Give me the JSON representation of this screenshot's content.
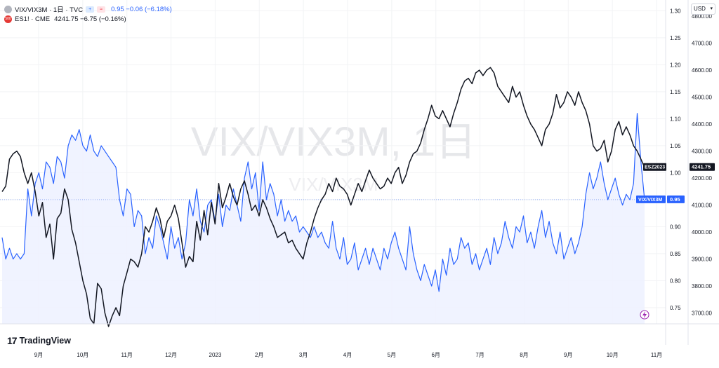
{
  "header": {
    "symbol": "VIX/VIX3M · 1日 · TVC",
    "symbol_values": "0.95  −0.06 (−6.18%)",
    "compare_symbol": "ES1! · CME",
    "compare_values": "4241.75  −6.75 (−0.16%)",
    "compare_icon_text": "500"
  },
  "watermark": "VIX/VIX3M, 1日",
  "watermark_secondary": "VIX/VIX3M",
  "currency": "USD",
  "brand": "TradingView",
  "colors": {
    "vix_ratio": "#2962ff",
    "es_futures": "#131722",
    "fill": "#e3eaff",
    "up": "#089981",
    "down": "#f23645"
  },
  "chart_data": {
    "type": "line",
    "x_axis_labels": [
      "9月",
      "10月",
      "11月",
      "12月",
      "2023",
      "2月",
      "3月",
      "4月",
      "5月",
      "6月",
      "7月",
      "8月",
      "9月",
      "10月",
      "11月"
    ],
    "series": [
      {
        "name": "VIX/VIX3M",
        "scale": "left-price-scale",
        "ylim": [
          0.72,
          1.32
        ],
        "ticks": [
          "1.30",
          "1.25",
          "1.20",
          "1.15",
          "1.10",
          "1.05",
          "1.00",
          "0.95",
          "0.90",
          "0.85",
          "0.80",
          "0.75"
        ],
        "last_label": "VIX/VIX3M",
        "last_value_label": "0.95",
        "values": [
          0.88,
          0.84,
          0.86,
          0.84,
          0.85,
          0.84,
          0.85,
          0.97,
          0.92,
          0.98,
          1.0,
          0.97,
          1.02,
          1.01,
          0.98,
          1.03,
          1.02,
          0.99,
          1.05,
          1.07,
          1.06,
          1.08,
          1.05,
          1.04,
          1.07,
          1.04,
          1.03,
          1.05,
          1.04,
          1.03,
          1.02,
          1.01,
          0.95,
          0.92,
          0.97,
          0.96,
          0.9,
          0.93,
          0.92,
          0.85,
          0.88,
          0.86,
          0.92,
          0.9,
          0.87,
          0.84,
          0.9,
          0.86,
          0.88,
          0.84,
          0.87,
          0.95,
          0.92,
          0.97,
          0.91,
          0.89,
          0.94,
          0.95,
          0.91,
          0.96,
          0.9,
          0.94,
          0.93,
          0.97,
          0.94,
          0.91,
          0.99,
          1.02,
          0.97,
          1.0,
          0.93,
          1.02,
          0.95,
          0.98,
          0.96,
          0.92,
          0.95,
          0.91,
          0.93,
          0.91,
          0.92,
          0.89,
          0.9,
          0.89,
          0.88,
          0.9,
          0.88,
          0.89,
          0.87,
          0.86,
          0.91,
          0.86,
          0.84,
          0.88,
          0.83,
          0.84,
          0.87,
          0.82,
          0.84,
          0.86,
          0.83,
          0.86,
          0.84,
          0.82,
          0.86,
          0.84,
          0.87,
          0.89,
          0.86,
          0.84,
          0.82,
          0.9,
          0.85,
          0.82,
          0.8,
          0.83,
          0.81,
          0.79,
          0.82,
          0.78,
          0.84,
          0.81,
          0.86,
          0.83,
          0.84,
          0.88,
          0.86,
          0.87,
          0.83,
          0.85,
          0.82,
          0.84,
          0.86,
          0.83,
          0.88,
          0.85,
          0.87,
          0.91,
          0.88,
          0.86,
          0.9,
          0.89,
          0.92,
          0.87,
          0.89,
          0.86,
          0.9,
          0.93,
          0.88,
          0.91,
          0.87,
          0.85,
          0.89,
          0.84,
          0.86,
          0.88,
          0.85,
          0.87,
          0.9,
          0.96,
          1.0,
          0.97,
          0.99,
          1.02,
          0.98,
          0.95,
          0.97,
          0.99,
          0.96,
          0.94,
          0.96,
          0.95,
          0.98,
          1.11,
          1.02,
          0.95
        ]
      },
      {
        "name": "ESZ2023",
        "scale": "right-price-scale",
        "ylim": [
          3660,
          4860
        ],
        "ticks": [
          "4800.00",
          "4700.00",
          "4600.00",
          "4500.00",
          "4400.00",
          "4300.00",
          "4200.00",
          "4100.00",
          "4000.00",
          "3900.00",
          "3800.00",
          "3700.00"
        ],
        "last_label": "ESZ2023",
        "last_value_label": "4241.75",
        "values": [
          4150,
          4170,
          4270,
          4290,
          4300,
          4280,
          4220,
          4180,
          4220,
          4150,
          4060,
          4110,
          3980,
          4030,
          3900,
          4050,
          4070,
          4160,
          4120,
          4010,
          3960,
          3890,
          3820,
          3770,
          3680,
          3660,
          3810,
          3790,
          3700,
          3650,
          3690,
          3720,
          3690,
          3800,
          3850,
          3900,
          3890,
          3870,
          3920,
          4020,
          4000,
          4040,
          4090,
          4050,
          3980,
          4040,
          4060,
          4100,
          4050,
          3960,
          3870,
          3910,
          3890,
          4040,
          3970,
          4080,
          3990,
          4110,
          4030,
          4180,
          4090,
          4130,
          4180,
          4130,
          4100,
          4160,
          4190,
          4140,
          4080,
          4100,
          4060,
          4120,
          4090,
          4050,
          4020,
          3980,
          3990,
          4000,
          3960,
          3970,
          3940,
          3920,
          3900,
          3960,
          4000,
          4050,
          4090,
          4120,
          4140,
          4180,
          4150,
          4200,
          4170,
          4160,
          4140,
          4100,
          4140,
          4180,
          4150,
          4190,
          4230,
          4200,
          4180,
          4160,
          4170,
          4200,
          4180,
          4220,
          4240,
          4180,
          4210,
          4260,
          4290,
          4300,
          4330,
          4380,
          4420,
          4470,
          4430,
          4420,
          4450,
          4420,
          4390,
          4440,
          4480,
          4530,
          4560,
          4570,
          4550,
          4590,
          4600,
          4580,
          4600,
          4610,
          4590,
          4540,
          4520,
          4500,
          4480,
          4540,
          4500,
          4520,
          4470,
          4430,
          4400,
          4380,
          4350,
          4320,
          4380,
          4400,
          4440,
          4510,
          4460,
          4480,
          4520,
          4500,
          4470,
          4520,
          4480,
          4450,
          4400,
          4320,
          4300,
          4310,
          4340,
          4260,
          4300,
          4380,
          4410,
          4360,
          4390,
          4360,
          4320,
          4300,
          4270,
          4240
        ]
      }
    ],
    "reference_line": 0.95,
    "grid": true,
    "legend_position": "top-left"
  }
}
